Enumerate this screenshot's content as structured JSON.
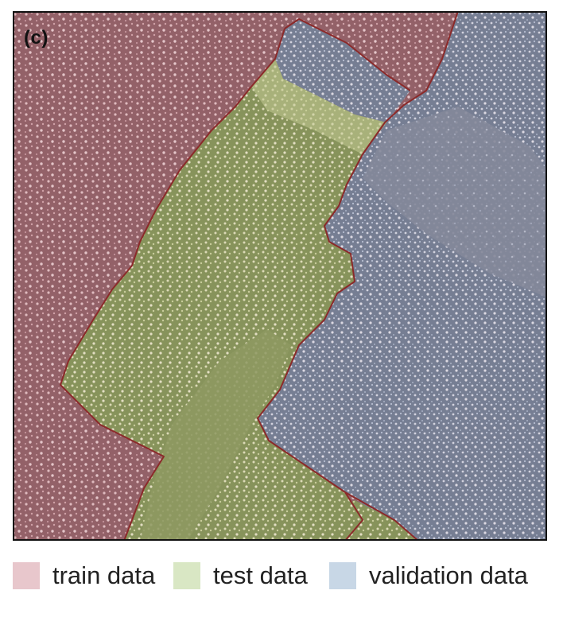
{
  "panel_label": "(c)",
  "legend": [
    {
      "label": "train data",
      "color": "#e8c7cc"
    },
    {
      "label": "test data",
      "color": "#d9e7c4"
    },
    {
      "label": "validation data",
      "color": "#c8d7e6"
    }
  ],
  "regions": {
    "train": {
      "fill": "#8a5a60",
      "overlay": "#b07880"
    },
    "test": {
      "fill": "#7f9a55",
      "overlay": "#c3d99a"
    },
    "validation": {
      "fill": "#6e8299",
      "overlay": "#a9c0da"
    },
    "boundary": "#8b2a2a"
  }
}
